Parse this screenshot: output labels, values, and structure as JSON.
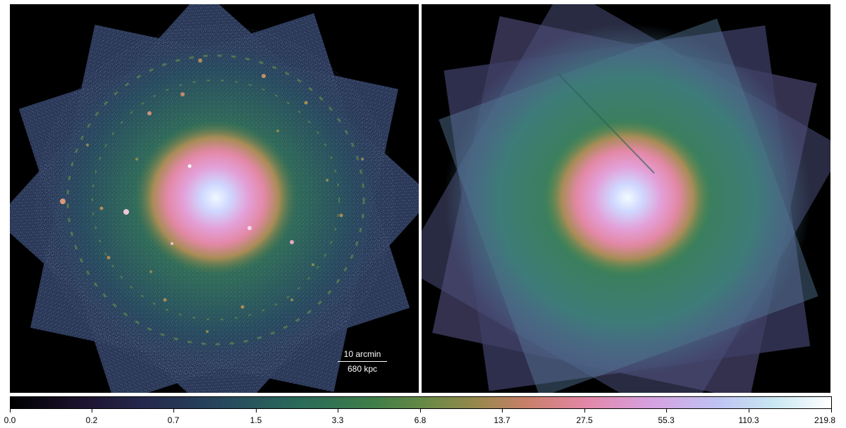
{
  "scalebar": {
    "angular_label": "10 arcmin",
    "physical_label": "680 kpc"
  },
  "colorbar": {
    "tick_labels": [
      "0.0",
      "0.2",
      "0.7",
      "1.5",
      "3.3",
      "6.8",
      "13.7",
      "27.5",
      "55.3",
      "110.3",
      "219.8"
    ],
    "colormap": "cubehelix-like (black → purple → teal → green → tan → pink → lavender → white)"
  },
  "panels": {
    "left": {
      "description_name": "observed-xray-image"
    },
    "right": {
      "description_name": "model-xray-image"
    }
  }
}
